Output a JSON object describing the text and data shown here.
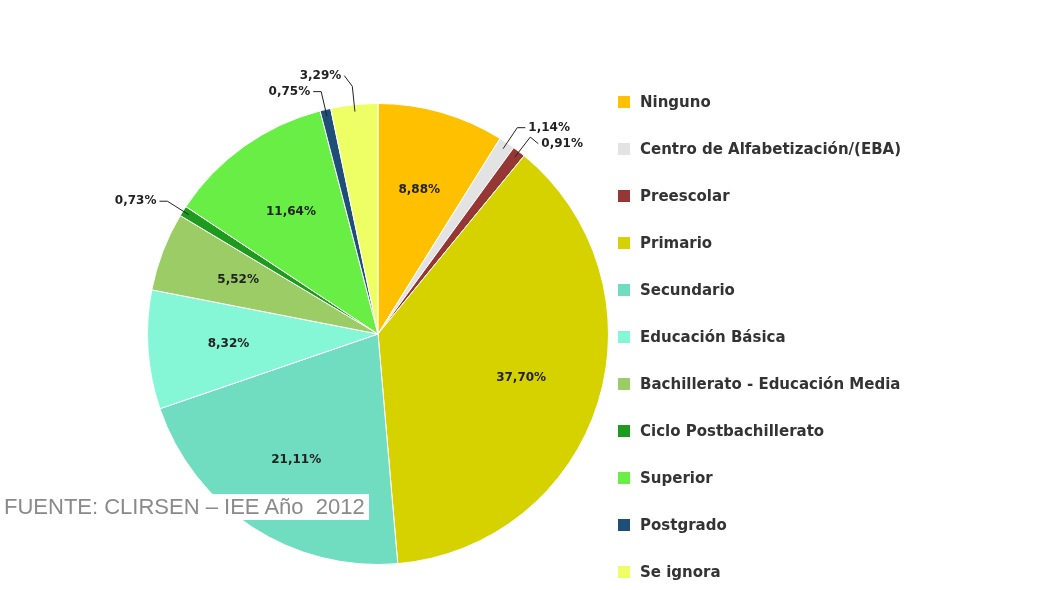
{
  "chart_data": {
    "type": "pie",
    "categories": [
      "Ninguno",
      "Centro de Alfabetización/(EBA)",
      "Preescolar",
      "Primario",
      "Secundario",
      "Educación Básica",
      "Bachillerato - Educación Media",
      "Ciclo Postbachillerato",
      "Superior",
      "Postgrado",
      "Se ignora"
    ],
    "values": [
      8.88,
      1.14,
      0.91,
      37.7,
      21.11,
      8.32,
      5.52,
      0.73,
      11.64,
      0.75,
      3.29
    ],
    "value_labels": [
      "8,88%",
      "1,14%",
      "0,91%",
      "37,70%",
      "21,11%",
      "8,32%",
      "5,52%",
      "0,73%",
      "11,64%",
      "0,75%",
      "3,29%"
    ],
    "colors": [
      "#ffc000",
      "#e3e3e3",
      "#953735",
      "#d6d200",
      "#70dcc0",
      "#85f6d6",
      "#9ccc66",
      "#1e9a1e",
      "#68ee44",
      "#1f4e79",
      "#eeff66"
    ],
    "legend": "right",
    "annotations": [
      "FUENTE: CLIRSEN – IEE Año  2012"
    ]
  }
}
